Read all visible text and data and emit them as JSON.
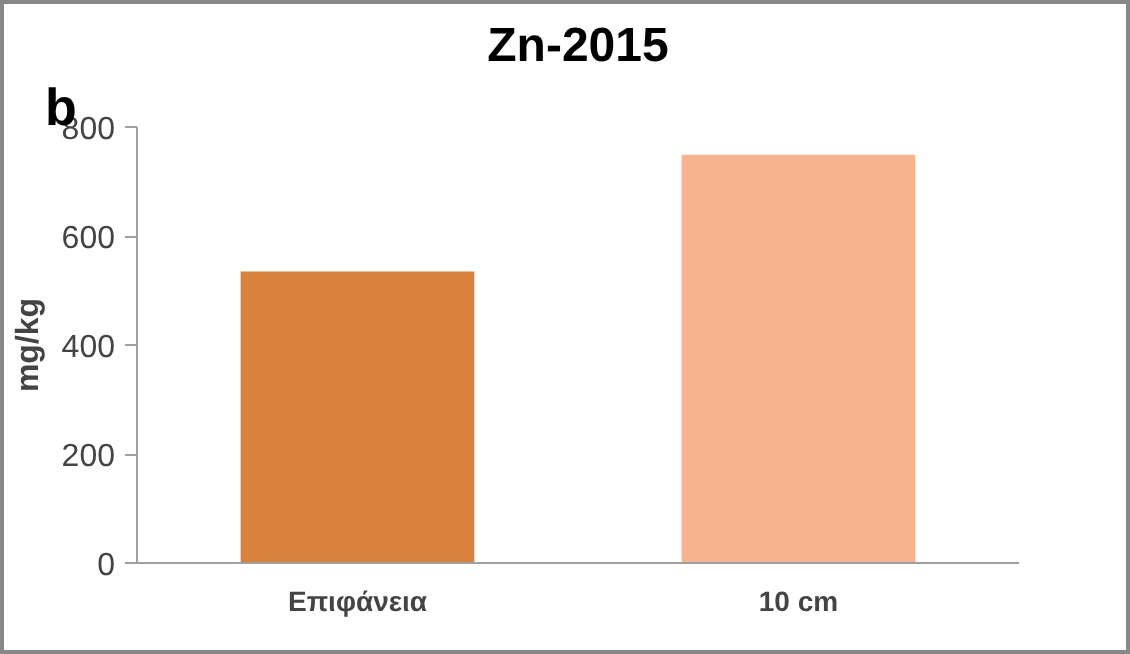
{
  "chart_data": {
    "type": "bar",
    "title": "Zn-2015",
    "ylabel": "mg/kg",
    "annotations": [
      "b"
    ],
    "categories": [
      "Επιφάνεια",
      "10 cm"
    ],
    "values": [
      535,
      749
    ],
    "colors": [
      "#d9823e",
      "#f5b48e"
    ],
    "ylim": [
      0,
      800
    ],
    "yticks": [
      0,
      200,
      400,
      600,
      800
    ],
    "grid": false
  }
}
